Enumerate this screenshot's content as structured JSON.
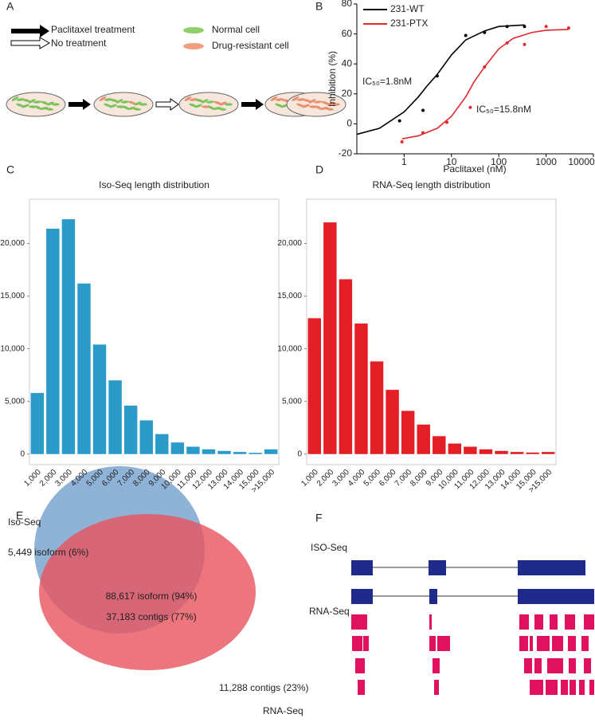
{
  "panel_labels": [
    "A",
    "B",
    "C",
    "D",
    "E",
    "F"
  ],
  "diagram_a": {
    "legend": [
      "Paclitaxel treatment",
      "No treatment",
      "Normal cell",
      "Drug-resistant cell"
    ]
  },
  "chart_data": [
    {
      "type": "scatter",
      "xlabel": "Paclitaxel (nM)",
      "ylabel": "Inhibition (%)",
      "log_x": true,
      "xlim": [
        0.1,
        10000
      ],
      "xticks": [
        1,
        10,
        100,
        1000,
        10000
      ],
      "ylim": [
        -20,
        80
      ],
      "yticks": [
        -20,
        0,
        20,
        40,
        60,
        80
      ],
      "annotations": [
        "IC₅₀=1.8nM",
        "IC₅₀=15.8nM"
      ],
      "series": [
        {
          "name": "231-WT",
          "color": "#000000",
          "x": [
            0.8,
            2.5,
            5,
            20,
            50,
            150,
            350
          ],
          "values": [
            2,
            9,
            32,
            59,
            61,
            65,
            65
          ],
          "fit_x": [
            0.1,
            0.3,
            1,
            2,
            3,
            5,
            10,
            20,
            50,
            100,
            350
          ],
          "fit_values": [
            -7,
            -3,
            8,
            18,
            25,
            33,
            46,
            56,
            62,
            65,
            66
          ]
        },
        {
          "name": "231-PTX",
          "color": "#e0282d",
          "x": [
            0.9,
            2.5,
            8,
            25,
            50,
            150,
            350,
            1000,
            3000
          ],
          "values": [
            -12,
            -6,
            1,
            11,
            38,
            54,
            53,
            65,
            64
          ],
          "fit_x": [
            0.9,
            2,
            5,
            10,
            20,
            30,
            50,
            100,
            200,
            500,
            1000,
            3000
          ],
          "fit_values": [
            -10,
            -8,
            -3,
            5,
            18,
            28,
            38,
            50,
            57,
            61,
            62.5,
            63
          ]
        }
      ]
    },
    {
      "type": "bar",
      "title": "Iso-Seq length distribution",
      "color": "#2a9ac9",
      "categories": [
        "1,000",
        "2,000",
        "3,000",
        "4,000",
        "5,000",
        "6,000",
        "7,000",
        "8,000",
        "9,000",
        "10,000",
        "11,000",
        "12,000",
        "13,000",
        "14,000",
        "15,000",
        ">15,000"
      ],
      "values": [
        5800,
        21400,
        22300,
        16200,
        10400,
        7000,
        4600,
        3200,
        1900,
        1100,
        700,
        450,
        300,
        200,
        120,
        450
      ],
      "ylim": [
        -1000,
        24200
      ],
      "yticks": [
        0,
        {
          "value": 5000,
          "label": "5,000"
        },
        {
          "value": 10000,
          "label": "10,000"
        },
        {
          "value": 15000,
          "label": "15,000"
        },
        {
          "value": 20000,
          "label": "20,000"
        }
      ]
    },
    {
      "type": "bar",
      "title": "RNA-Seq length distribution",
      "color": "#e31e24",
      "categories": [
        "1,000",
        "2,000",
        "3,000",
        "4,000",
        "5,000",
        "6,000",
        "7,000",
        "8,000",
        "9,000",
        "10,000",
        "11,000",
        "12,000",
        "13,000",
        "14,000",
        "15,000",
        ">15,000"
      ],
      "values": [
        12900,
        22000,
        16600,
        12400,
        8800,
        6100,
        4100,
        2800,
        1700,
        1000,
        700,
        450,
        300,
        200,
        150,
        200
      ],
      "ylim": [
        -1000,
        24200
      ],
      "yticks": [
        0,
        {
          "value": 5000,
          "label": "5,000"
        },
        {
          "value": 10000,
          "label": "10,000"
        },
        {
          "value": 15000,
          "label": "15,000"
        },
        {
          "value": 20000,
          "label": "20,000"
        }
      ]
    }
  ],
  "venn": {
    "sets": [
      "Iso-Seq",
      "RNA-Seq"
    ],
    "only_iso": "5,449 isoform (6%)",
    "shared": [
      "88,617 isoform (94%)",
      "37,183 contigs (77%)"
    ],
    "only_rna": "11,288 contigs (23%)"
  },
  "diagram_f": {
    "tracks": [
      "ISO-Seq",
      "RNA-Seq"
    ]
  }
}
